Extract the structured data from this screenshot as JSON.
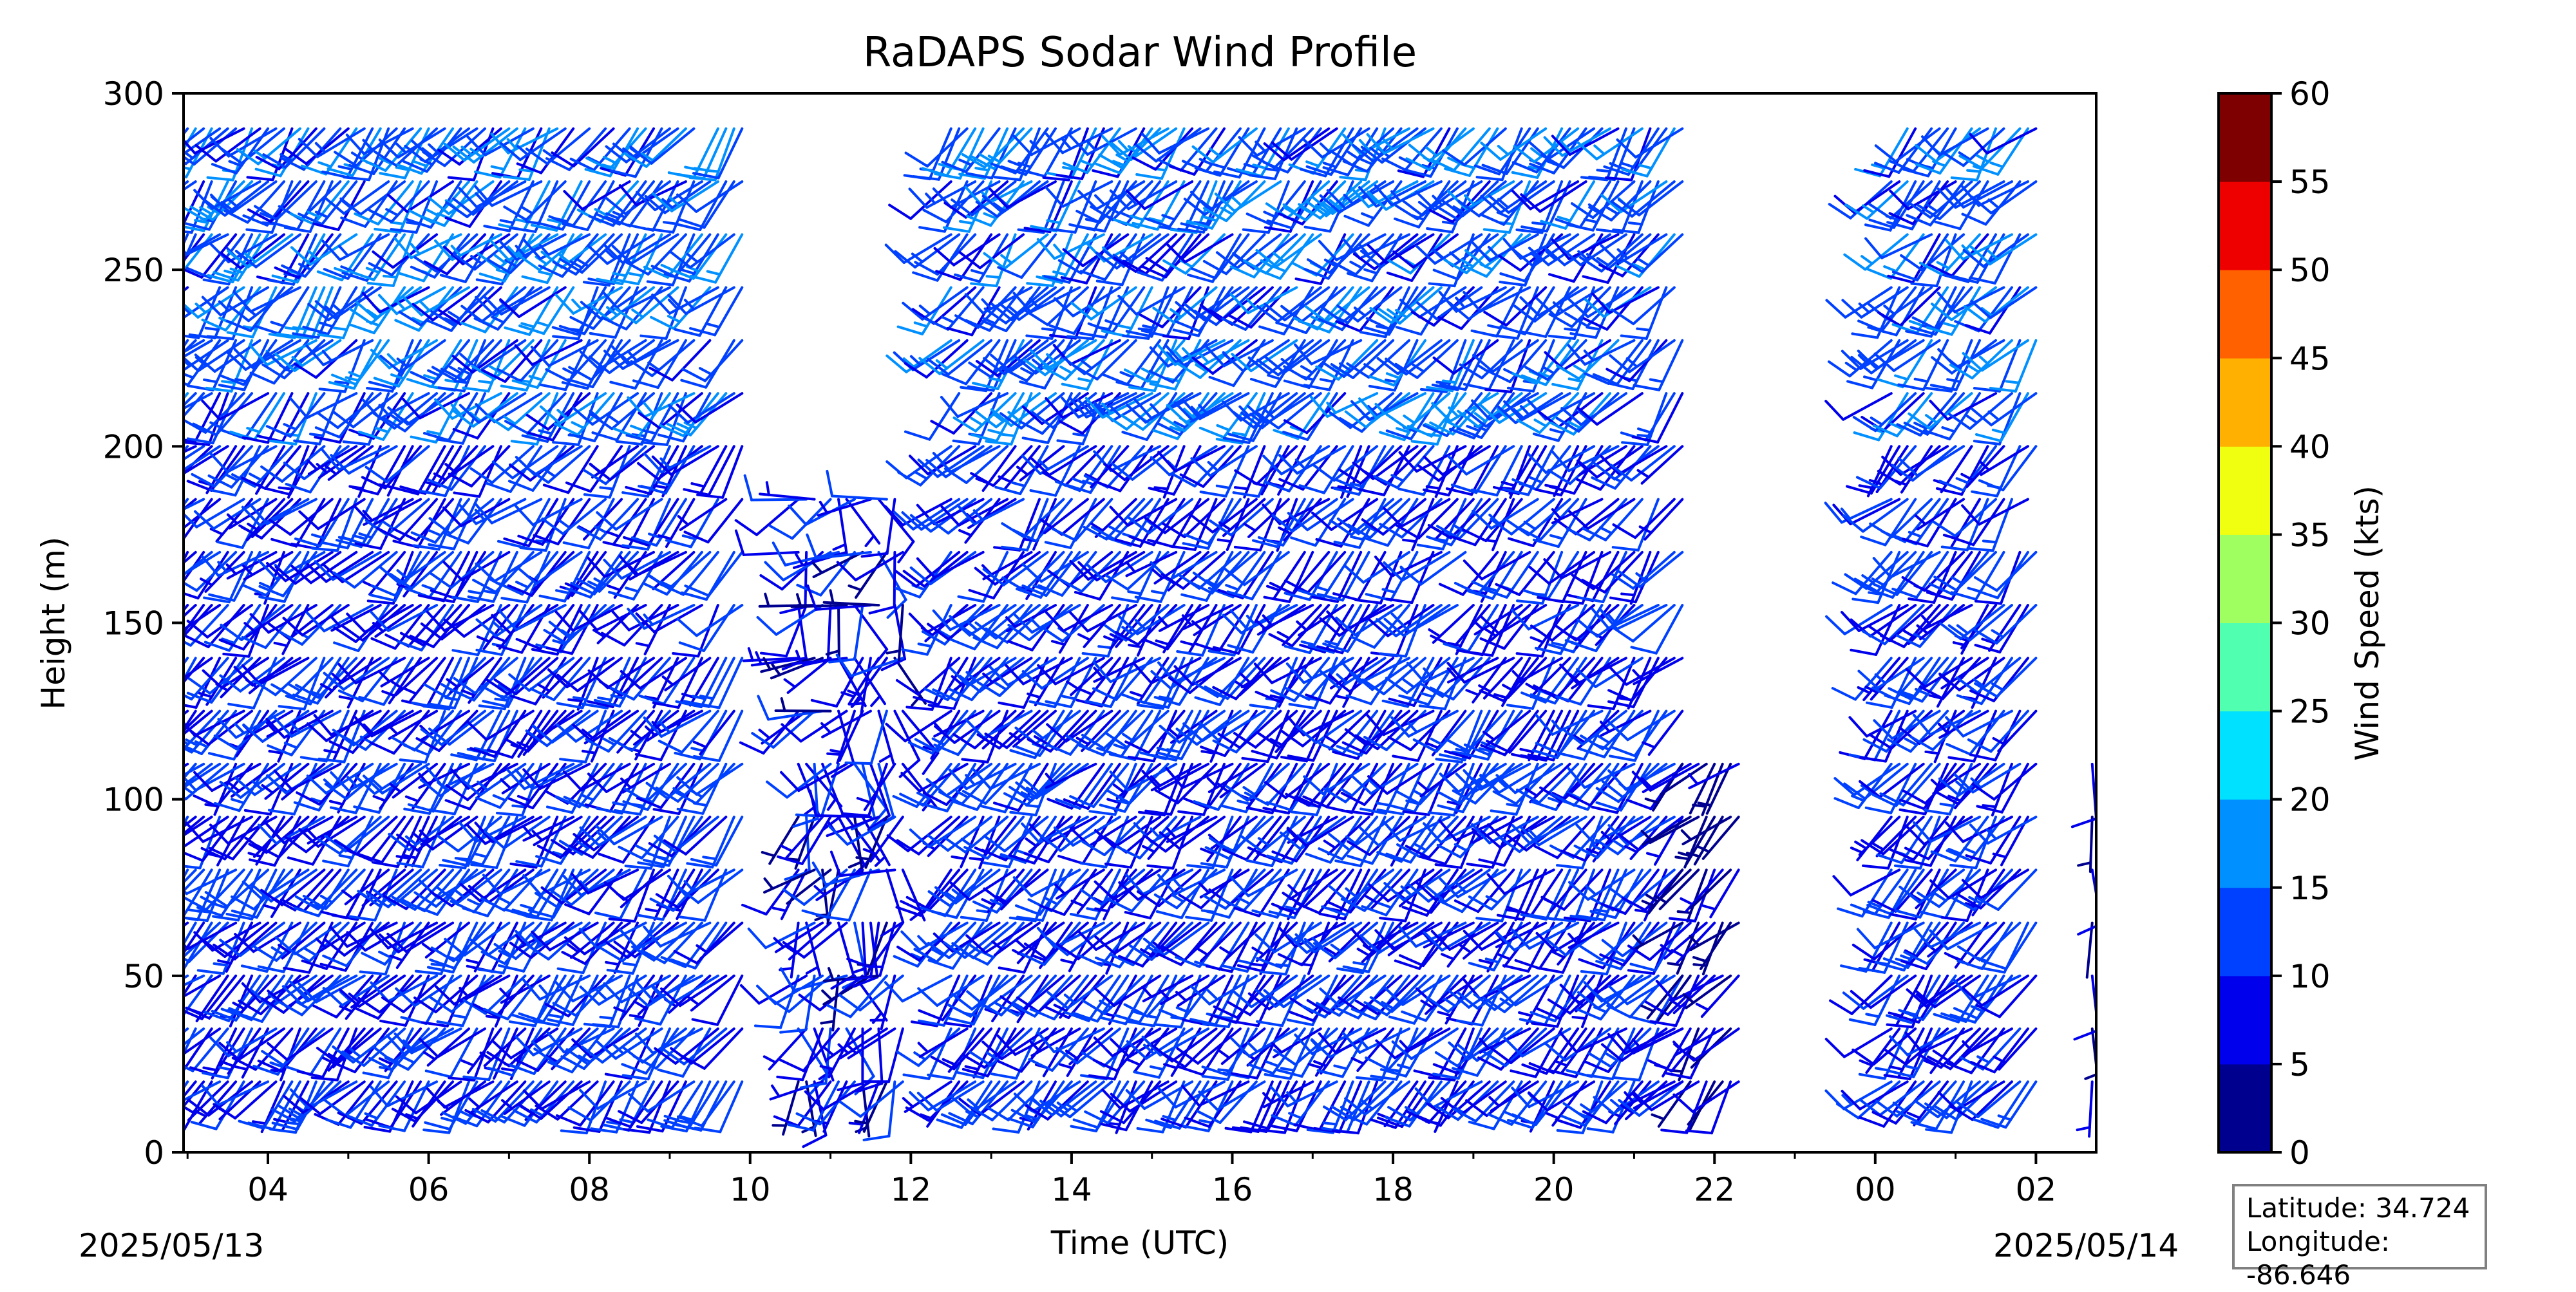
{
  "chart_data": {
    "type": "barbs",
    "title": "RaDAPS Sodar Wind Profile",
    "xlabel": "Time (UTC)",
    "ylabel": "Height (m)",
    "x_tick_labels": [
      "04",
      "06",
      "08",
      "10",
      "12",
      "14",
      "16",
      "18",
      "20",
      "22",
      "00",
      "02"
    ],
    "x_tick_hours": [
      4,
      6,
      8,
      10,
      12,
      14,
      16,
      18,
      20,
      22,
      24,
      26
    ],
    "xlim_hours": [
      2.95,
      26.75
    ],
    "date_labels": {
      "start": "2025/05/13",
      "end": "2025/05/14"
    },
    "ylim": [
      0,
      300
    ],
    "y_ticks": [
      0,
      50,
      100,
      150,
      200,
      250,
      300
    ],
    "heights_m": [
      20,
      35,
      50,
      65,
      80,
      95,
      110,
      125,
      140,
      155,
      170,
      185,
      200,
      215,
      230,
      245,
      260,
      275,
      290
    ],
    "colorbar": {
      "label": "Wind Speed (kts)",
      "levels": [
        0,
        5,
        10,
        15,
        20,
        25,
        30,
        35,
        40,
        45,
        50,
        55,
        60
      ],
      "colors": [
        "#00008f",
        "#0000ec",
        "#0040ff",
        "#0090ff",
        "#00e0ff",
        "#50ffaf",
        "#a0ff60",
        "#f0ff10",
        "#ffb000",
        "#ff6000",
        "#ef0000",
        "#7f0000"
      ]
    },
    "data_coverage": [
      {
        "start_hour": 3.0,
        "end_hour": 9.9,
        "max_height_m": 290,
        "typical_speed_kts": 10,
        "typical_direction": "southwesterly"
      },
      {
        "start_hour": 10.6,
        "end_hour": 11.9,
        "max_height_m": 185,
        "typical_speed_kts": 8,
        "typical_direction": "variable"
      },
      {
        "start_hour": 12.5,
        "end_hour": 21.6,
        "max_height_m": 290,
        "typical_speed_kts": 10,
        "typical_direction": "southwesterly"
      },
      {
        "start_hour": 21.6,
        "end_hour": 22.3,
        "max_height_m": 110,
        "typical_speed_kts": 5,
        "typical_direction": "southwesterly"
      },
      {
        "start_hour": 24.2,
        "end_hour": 26.0,
        "max_height_m": 290,
        "typical_speed_kts": 10,
        "typical_direction": "southwesterly"
      },
      {
        "start_hour": 26.7,
        "end_hour": 26.75,
        "max_height_m": 110,
        "typical_speed_kts": 5,
        "typical_direction": "southerly"
      }
    ]
  },
  "info": {
    "latitude": "Latitude: 34.724",
    "longitude": "Longitude: -86.646"
  }
}
